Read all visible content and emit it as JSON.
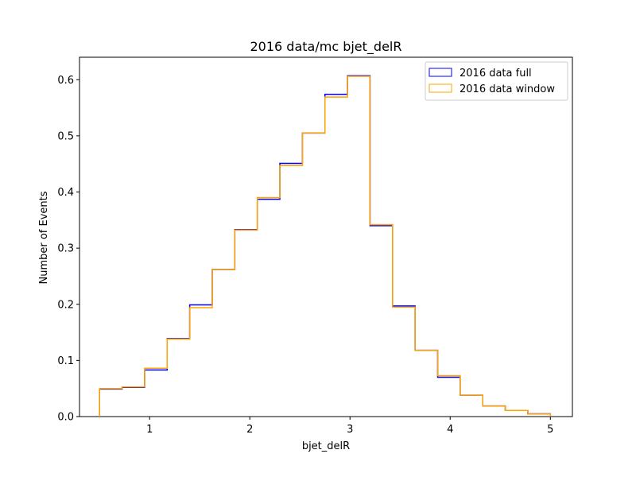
{
  "chart_data": {
    "type": "histogram-step",
    "title": "2016 data/mc bjet_delR",
    "xlabel": "bjet_delR",
    "ylabel": "Number of Events",
    "xlim": [
      0.3,
      5.22
    ],
    "ylim": [
      0,
      0.64
    ],
    "xticks": [
      1,
      2,
      3,
      4,
      5
    ],
    "yticks": [
      0.0,
      0.1,
      0.2,
      0.3,
      0.4,
      0.5,
      0.6
    ],
    "bin_edges": [
      0.5,
      0.725,
      0.95,
      1.175,
      1.4,
      1.625,
      1.85,
      2.075,
      2.3,
      2.525,
      2.75,
      2.975,
      3.2,
      3.425,
      3.65,
      3.875,
      4.1,
      4.325,
      4.55,
      4.775,
      5.0
    ],
    "legend_position": "upper right",
    "grid": false,
    "series": [
      {
        "name": "2016 data full",
        "color": "#0000ff",
        "values": [
          0.049,
          0.052,
          0.083,
          0.139,
          0.199,
          0.262,
          0.333,
          0.387,
          0.451,
          0.505,
          0.574,
          0.607,
          0.34,
          0.197,
          0.118,
          0.07,
          0.038,
          0.019,
          0.011,
          0.005
        ]
      },
      {
        "name": "2016 data window",
        "color": "#ffa500",
        "values": [
          0.05,
          0.053,
          0.086,
          0.138,
          0.194,
          0.262,
          0.332,
          0.39,
          0.447,
          0.505,
          0.569,
          0.606,
          0.342,
          0.195,
          0.118,
          0.073,
          0.038,
          0.019,
          0.011,
          0.005
        ]
      }
    ]
  }
}
